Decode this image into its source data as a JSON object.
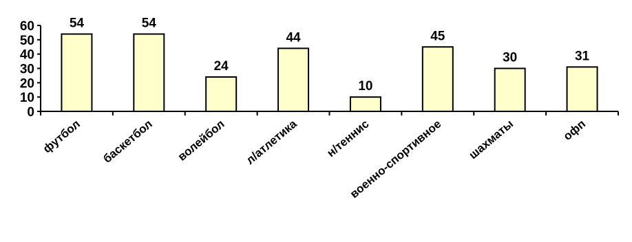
{
  "chart_data": {
    "type": "bar",
    "categories": [
      "футбол",
      "баскетбол",
      "волейбол",
      "л/атлетика",
      "н/теннис",
      "военно-спортивное",
      "шахматы",
      "офп"
    ],
    "values": [
      54,
      54,
      24,
      44,
      10,
      45,
      30,
      31
    ],
    "data_labels": [
      "54",
      "54",
      "24",
      "44",
      "10",
      "45",
      "30",
      "31"
    ],
    "y_ticks": [
      "0",
      "10",
      "20",
      "30",
      "40",
      "50",
      "60"
    ],
    "ylim": [
      0,
      60
    ],
    "grid": false,
    "legend": "none",
    "bar_color": "#ffffcc",
    "bar_stroke": "#000000"
  }
}
